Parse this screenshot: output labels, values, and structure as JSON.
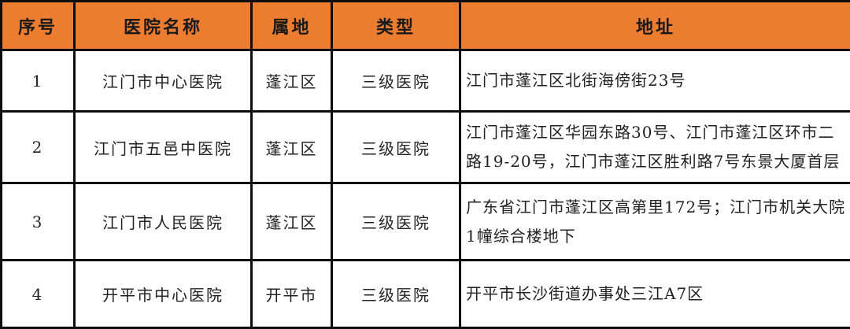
{
  "table": {
    "columns": [
      {
        "label": "序号"
      },
      {
        "label": "医院名称"
      },
      {
        "label": "属地"
      },
      {
        "label": "类型"
      },
      {
        "label": "地址"
      }
    ],
    "rows": [
      {
        "index": "1",
        "name": "江门市中心医院",
        "region": "蓬江区",
        "type": "三级医院",
        "address": "江门市蓬江区北街海傍街23号"
      },
      {
        "index": "2",
        "name": "江门市五邑中医院",
        "region": "蓬江区",
        "type": "三级医院",
        "address": "江门市蓬江区华园东路30号、江门市蓬江区环市二路19-20号，江门市蓬江区胜利路7号东景大厦首层"
      },
      {
        "index": "3",
        "name": "江门市人民医院",
        "region": "蓬江区",
        "type": "三级医院",
        "address": "广东省江门市蓬江区高第里172号；江门市机关大院1幢综合楼地下"
      },
      {
        "index": "4",
        "name": "开平市中心医院",
        "region": "开平市",
        "type": "三级医院",
        "address": "开平市长沙街道办事处三江A7区"
      }
    ]
  },
  "colors": {
    "header_background": "#ec7c30",
    "border": "#0d0d0d",
    "header_text": "#1a1a1a",
    "body_text": "#222222"
  }
}
